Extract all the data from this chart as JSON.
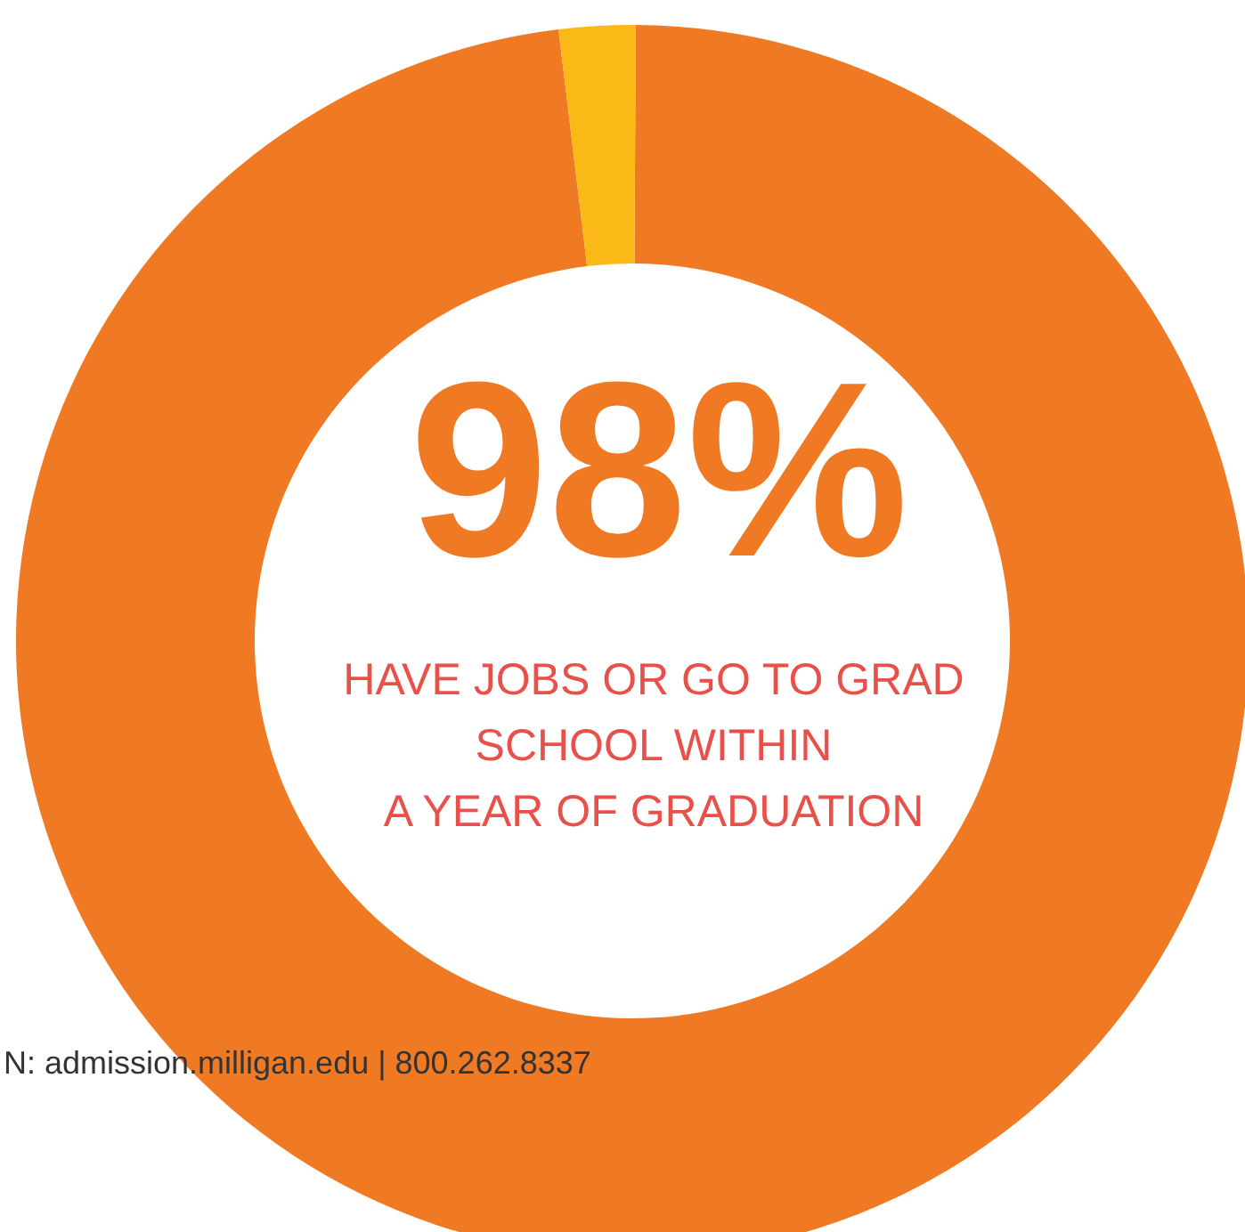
{
  "chart_data": {
    "type": "donut",
    "title": "98%",
    "subtitle": [
      "HAVE JOBS OR GO TO GRAD",
      "SCHOOL WITHIN",
      "A YEAR OF GRADUATION"
    ],
    "categories": [
      null,
      null
    ],
    "values": [
      98,
      2
    ],
    "colors": [
      "#f07a24",
      "#fbb917"
    ],
    "annotations": [
      "N: admission.milligan.edu | 800.262.8337"
    ]
  }
}
